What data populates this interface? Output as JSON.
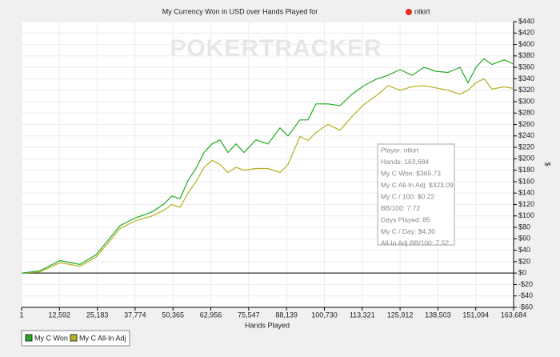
{
  "chart_data": {
    "type": "line",
    "title": "My Currency Won in USD over Hands Played for",
    "player_name": "ntkirt",
    "watermark": "POKERTRACKER",
    "xlabel": "Hands Played",
    "ylabel": "$",
    "xlim": [
      1,
      163684
    ],
    "ylim": [
      -60,
      440
    ],
    "xticks": [
      1,
      {
        "value": 12592,
        "label": "12,592"
      },
      {
        "value": 25183,
        "label": "25,183"
      },
      {
        "value": 37774,
        "label": "37,774"
      },
      {
        "value": 50365,
        "label": "50,365"
      },
      {
        "value": 62956,
        "label": "62,956"
      },
      {
        "value": 75547,
        "label": "75,547"
      },
      {
        "value": 88139,
        "label": "88,139"
      },
      {
        "value": 100730,
        "label": "100,730"
      },
      {
        "value": 113321,
        "label": "113,321"
      },
      {
        "value": 125912,
        "label": "125,912"
      },
      {
        "value": 138503,
        "label": "138,503"
      },
      {
        "value": 151094,
        "label": "151,094"
      },
      {
        "value": 163684,
        "label": "163,684"
      }
    ],
    "yticks": [
      {
        "value": -60,
        "label": "-$60"
      },
      {
        "value": -40,
        "label": "-$40"
      },
      {
        "value": -20,
        "label": "-$20"
      },
      {
        "value": 0,
        "label": "$0"
      },
      {
        "value": 20,
        "label": "$20"
      },
      {
        "value": 40,
        "label": "$40"
      },
      {
        "value": 60,
        "label": "$60"
      },
      {
        "value": 80,
        "label": "$80"
      },
      {
        "value": 100,
        "label": "$100"
      },
      {
        "value": 120,
        "label": "$120"
      },
      {
        "value": 140,
        "label": "$140"
      },
      {
        "value": 160,
        "label": "$160"
      },
      {
        "value": 180,
        "label": "$180"
      },
      {
        "value": 200,
        "label": "$200"
      },
      {
        "value": 220,
        "label": "$220"
      },
      {
        "value": 240,
        "label": "$240"
      },
      {
        "value": 260,
        "label": "$260"
      },
      {
        "value": 280,
        "label": "$280"
      },
      {
        "value": 300,
        "label": "$300"
      },
      {
        "value": 320,
        "label": "$320"
      },
      {
        "value": 340,
        "label": "$340"
      },
      {
        "value": 360,
        "label": "$360"
      },
      {
        "value": 380,
        "label": "$380"
      },
      {
        "value": 400,
        "label": "$400"
      },
      {
        "value": 420,
        "label": "$420"
      },
      {
        "value": 440,
        "label": "$440"
      }
    ],
    "grid": true,
    "x": [
      1,
      6122,
      12776,
      19430,
      24753,
      28745,
      32737,
      38060,
      43383,
      47376,
      50037,
      52699,
      55360,
      58022,
      60683,
      63345,
      66006,
      68668,
      71329,
      73991,
      77983,
      81975,
      85967,
      88629,
      92621,
      95283,
      97944,
      101936,
      105929,
      109921,
      113913,
      117905,
      121898,
      125890,
      129882,
      133874,
      137867,
      141859,
      145851,
      148513,
      151174,
      153836,
      156497,
      160490,
      163684
    ],
    "series": [
      {
        "name": "My C Won",
        "color": "#22aa22",
        "values": [
          0,
          4,
          22,
          15,
          32,
          57,
          83,
          97,
          107,
          121,
          135,
          130,
          162,
          183,
          211,
          226,
          233,
          211,
          226,
          211,
          233,
          226,
          254,
          240,
          268,
          268,
          296,
          296,
          293,
          313,
          328,
          339,
          346,
          356,
          346,
          360,
          353,
          351,
          360,
          333,
          360,
          375,
          365,
          373,
          365.73
        ]
      },
      {
        "name": "My C All-In Adj",
        "color": "#b8b020",
        "values": [
          0,
          2,
          18,
          12,
          28,
          52,
          78,
          92,
          100,
          110,
          120,
          115,
          140,
          160,
          185,
          197,
          190,
          176,
          185,
          180,
          183,
          183,
          176,
          190,
          239,
          232,
          246,
          260,
          250,
          274,
          295,
          310,
          328,
          320,
          326,
          328,
          324,
          320,
          313,
          320,
          333,
          340,
          322,
          326,
          323.09
        ]
      }
    ],
    "info_box": [
      "Player: ntkirt",
      "Hands: 163,684",
      "My C Won: $365.73",
      "My C All-In Adj: $323.09",
      "My C / 100: $0.22",
      "BB/100: 7.72",
      "Days Played: 85",
      "My C / Day: $4.30",
      "All-In Adj BB/100: 7.52"
    ]
  }
}
